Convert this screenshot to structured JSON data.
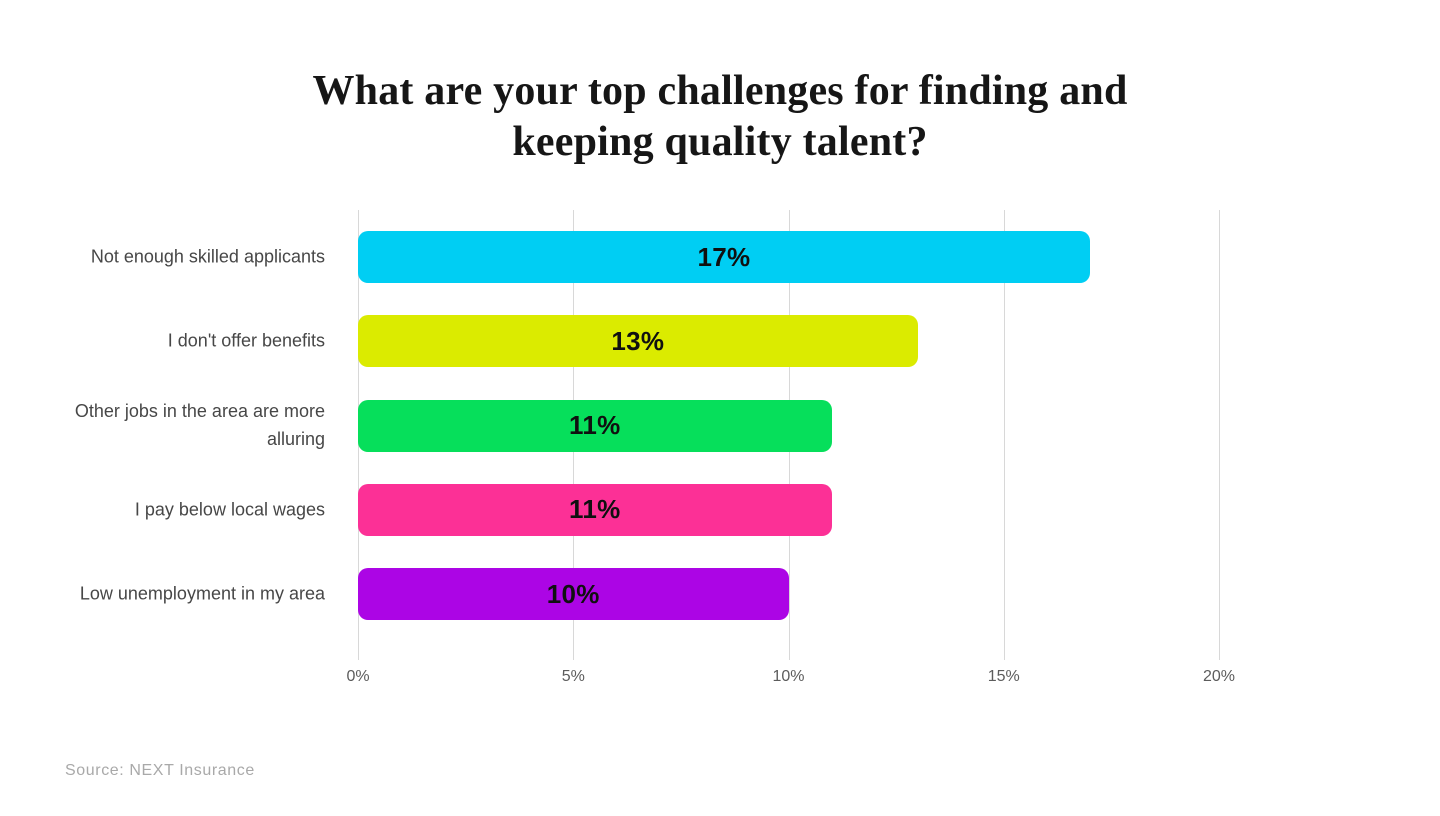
{
  "title": {
    "full": "What are your top challenges for finding and keeping quality talent?",
    "lines": [
      "What are your top challenges for finding and",
      "keeping quality talent?"
    ]
  },
  "source": "Source: NEXT Insurance",
  "chart_data": {
    "type": "bar",
    "orientation": "horizontal",
    "title": "What are your top challenges for finding and keeping quality talent?",
    "categories": [
      "Not enough skilled applicants",
      "I don't offer benefits",
      "Other jobs in the area are more alluring",
      "I pay below local wages",
      "Low unemployment in my area"
    ],
    "values": [
      17,
      13,
      11,
      11,
      10
    ],
    "value_labels": [
      "17%",
      "13%",
      "11%",
      "11%",
      "10%"
    ],
    "bar_colors": [
      "#00CEF3",
      "#DBEB00",
      "#06DF5B",
      "#FC3096",
      "#AC05E5"
    ],
    "xlim": [
      0,
      20
    ],
    "x_ticks": [
      {
        "value": 0,
        "label": "0%"
      },
      {
        "value": 5,
        "label": "5%"
      },
      {
        "value": 10,
        "label": "10%"
      },
      {
        "value": 15,
        "label": "15%"
      },
      {
        "value": 20,
        "label": "20%"
      }
    ],
    "grid": "vertical",
    "legend": false,
    "value_label_position": "center",
    "source": "Source: NEXT Insurance"
  }
}
